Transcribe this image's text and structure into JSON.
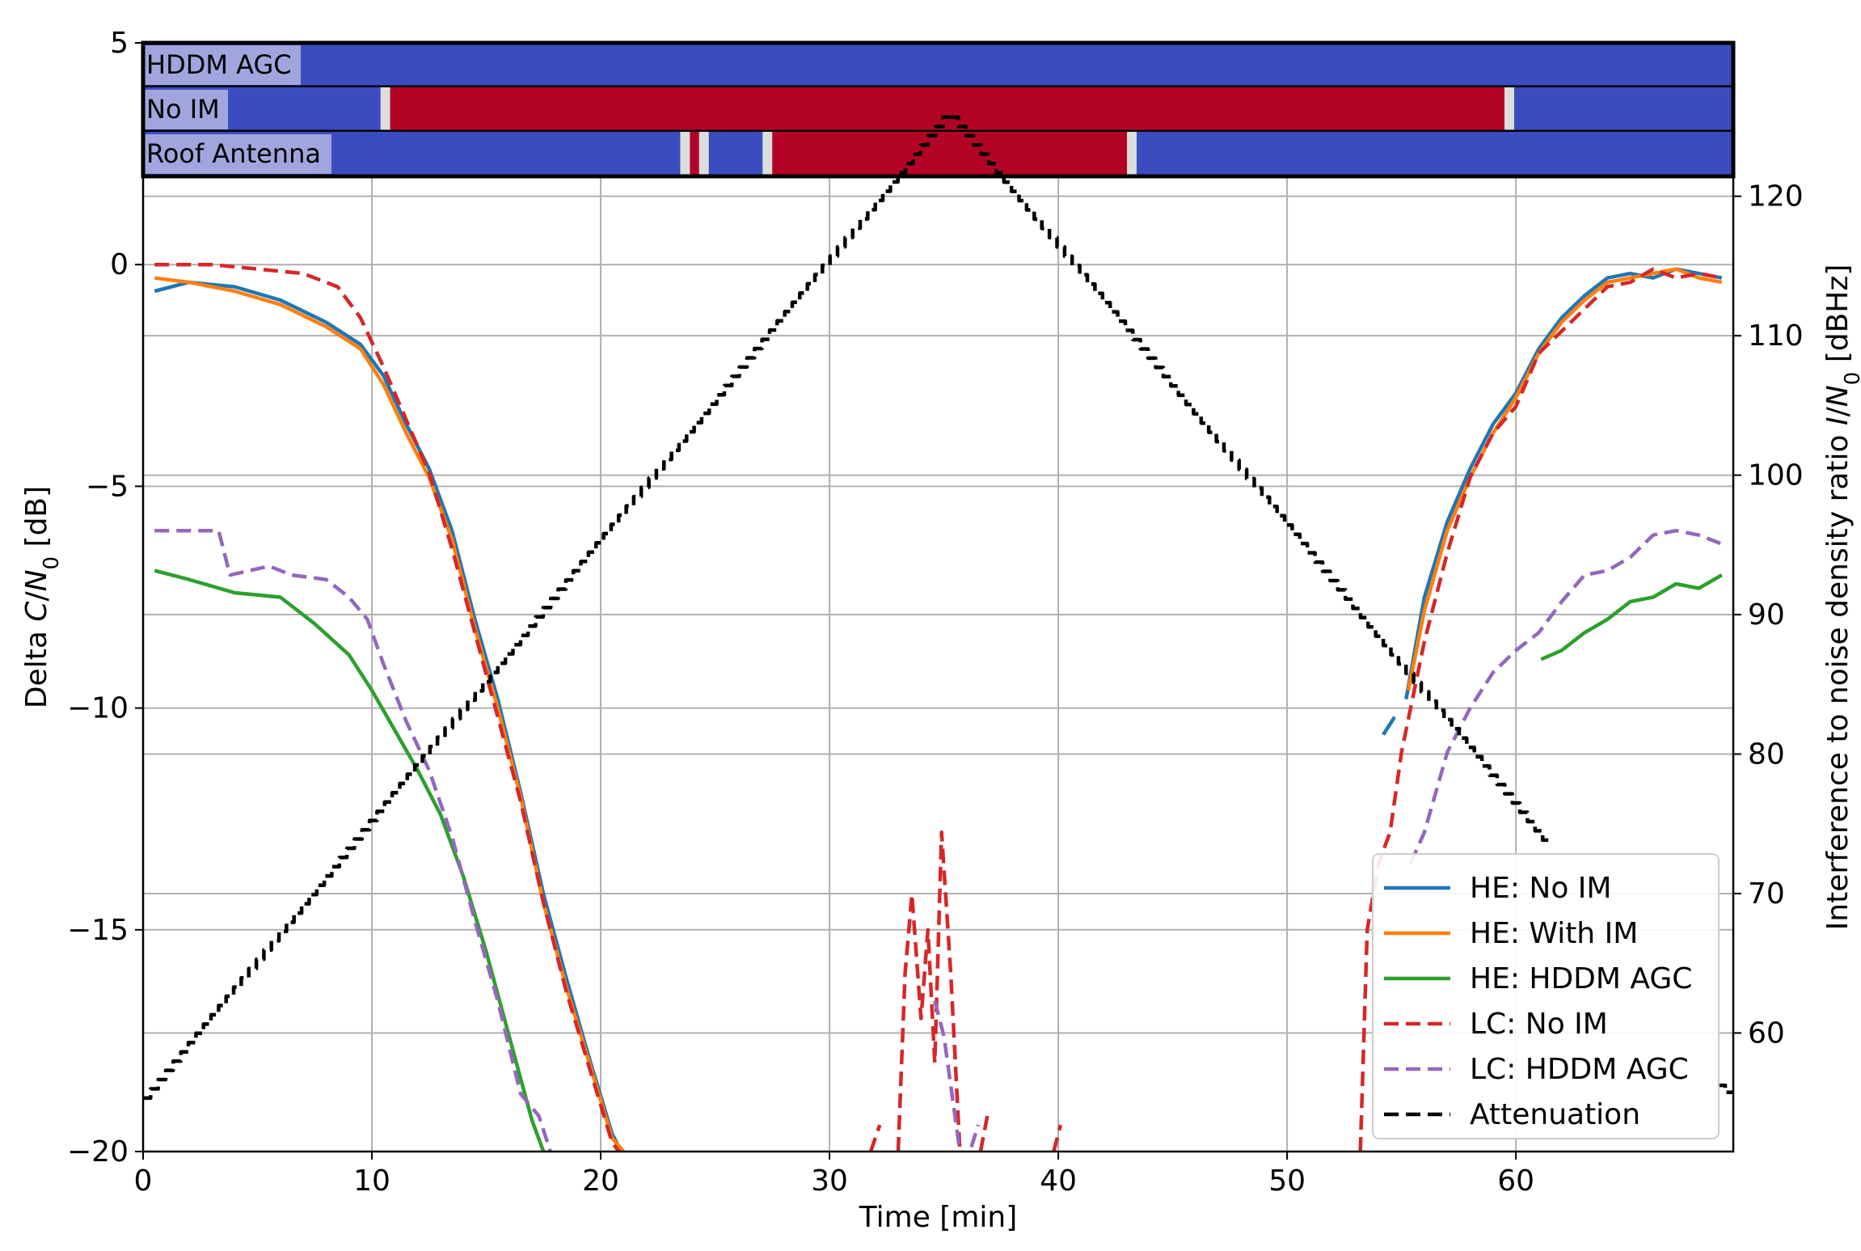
{
  "chart_data": {
    "type": "line",
    "xlabel": "Time [min]",
    "ylabel_left_parts": [
      "Delta ",
      "C",
      "/",
      "N",
      "0",
      " [dB]"
    ],
    "ylabel_right_parts": [
      "Interference to noise density ratio ",
      "I",
      "/",
      "N",
      "0",
      " [dBHz]"
    ],
    "xlim": [
      0,
      69.5
    ],
    "ylim_left": [
      -20,
      5
    ],
    "ylim_right": [
      51.5,
      131
    ],
    "x_ticks": [
      "0",
      "10",
      "20",
      "30",
      "40",
      "50",
      "60"
    ],
    "y_left_ticks": [
      "5",
      "0",
      "−5",
      "−10",
      "−15",
      "−20"
    ],
    "y_right_ticks": [
      "60",
      "70",
      "80",
      "90",
      "100",
      "110",
      "120"
    ],
    "grid": true,
    "legend_position": "lower-right",
    "status_strips": [
      {
        "label": "HDDM AGC",
        "red_segments": []
      },
      {
        "label": "No IM",
        "red_segments": [
          [
            10.8,
            59.5
          ]
        ]
      },
      {
        "label": "Roof Antenna",
        "red_segments": [
          [
            23.9,
            24.3
          ],
          [
            27.5,
            43.0
          ]
        ]
      }
    ],
    "series": [
      {
        "name": "HE: No IM",
        "color": "#1f77b4",
        "style": "solid",
        "axis": "left",
        "segments": [
          [
            [
              0.5,
              -0.6
            ],
            [
              2,
              -0.4
            ],
            [
              4,
              -0.5
            ],
            [
              6,
              -0.8
            ],
            [
              8,
              -1.3
            ],
            [
              9.5,
              -1.8
            ],
            [
              10.5,
              -2.5
            ],
            [
              11.5,
              -3.6
            ],
            [
              12.5,
              -4.6
            ],
            [
              13.5,
              -6.0
            ],
            [
              14.5,
              -8.0
            ],
            [
              15.5,
              -9.8
            ],
            [
              16.5,
              -11.9
            ],
            [
              17.5,
              -14.2
            ],
            [
              18.5,
              -16.1
            ],
            [
              19.5,
              -17.9
            ],
            [
              20.5,
              -19.6
            ],
            [
              20.9,
              -20
            ]
          ],
          [
            [
              54.2,
              -10.6
            ],
            [
              54.7,
              -10.2
            ]
          ],
          [
            [
              55.2,
              -9.8
            ],
            [
              56,
              -7.5
            ],
            [
              57,
              -5.8
            ],
            [
              58,
              -4.6
            ],
            [
              59,
              -3.6
            ],
            [
              60,
              -2.9
            ],
            [
              61,
              -1.9
            ],
            [
              62,
              -1.2
            ],
            [
              63,
              -0.7
            ],
            [
              64,
              -0.3
            ],
            [
              65,
              -0.2
            ],
            [
              66,
              -0.3
            ],
            [
              67,
              -0.1
            ],
            [
              68,
              -0.2
            ],
            [
              69,
              -0.3
            ]
          ]
        ]
      },
      {
        "name": "HE: With IM",
        "color": "#ff7f0e",
        "style": "solid",
        "axis": "left",
        "segments": [
          [
            [
              0.5,
              -0.3
            ],
            [
              2,
              -0.4
            ],
            [
              4,
              -0.6
            ],
            [
              6,
              -0.9
            ],
            [
              8,
              -1.4
            ],
            [
              9.5,
              -1.9
            ],
            [
              10.5,
              -2.7
            ],
            [
              11.5,
              -3.8
            ],
            [
              12.5,
              -4.8
            ],
            [
              13.5,
              -6.2
            ],
            [
              14.5,
              -8.2
            ],
            [
              15.5,
              -10.0
            ],
            [
              16.5,
              -12.0
            ],
            [
              17.5,
              -14.4
            ],
            [
              18.5,
              -16.3
            ],
            [
              19.5,
              -18.0
            ],
            [
              20.5,
              -19.7
            ],
            [
              21,
              -20
            ]
          ],
          [
            [
              55.3,
              -9.6
            ],
            [
              56,
              -7.8
            ],
            [
              57,
              -6.0
            ],
            [
              58,
              -4.8
            ],
            [
              59,
              -3.8
            ],
            [
              60,
              -3.0
            ],
            [
              61,
              -2.0
            ],
            [
              62,
              -1.3
            ],
            [
              63,
              -0.8
            ],
            [
              64,
              -0.4
            ],
            [
              65,
              -0.3
            ],
            [
              66,
              -0.2
            ],
            [
              67,
              -0.1
            ],
            [
              68,
              -0.3
            ],
            [
              69,
              -0.4
            ]
          ]
        ]
      },
      {
        "name": "HE: HDDM AGC",
        "color": "#2ca02c",
        "style": "solid",
        "axis": "left",
        "segments": [
          [
            [
              0.5,
              -6.9
            ],
            [
              2,
              -7.1
            ],
            [
              4,
              -7.4
            ],
            [
              6,
              -7.5
            ],
            [
              7.5,
              -8.1
            ],
            [
              9,
              -8.8
            ],
            [
              10,
              -9.6
            ],
            [
              11,
              -10.5
            ],
            [
              12,
              -11.4
            ],
            [
              13,
              -12.4
            ],
            [
              14,
              -13.8
            ],
            [
              15,
              -15.5
            ],
            [
              16,
              -17.4
            ],
            [
              17,
              -19.3
            ],
            [
              17.5,
              -20
            ]
          ],
          [
            [
              61.1,
              -8.9
            ],
            [
              62,
              -8.7
            ],
            [
              63,
              -8.3
            ],
            [
              64,
              -8.0
            ],
            [
              65,
              -7.6
            ],
            [
              66,
              -7.5
            ],
            [
              67,
              -7.2
            ],
            [
              68,
              -7.3
            ],
            [
              69,
              -7.0
            ]
          ]
        ]
      },
      {
        "name": "LC: No IM",
        "color": "#d62728",
        "style": "dashed",
        "axis": "left",
        "segments": [
          [
            [
              0.5,
              0
            ],
            [
              3,
              0
            ],
            [
              5,
              -0.1
            ],
            [
              7,
              -0.2
            ],
            [
              8.5,
              -0.5
            ],
            [
              9.5,
              -1.2
            ],
            [
              10.5,
              -2.3
            ],
            [
              11.5,
              -3.5
            ],
            [
              12.5,
              -4.7
            ],
            [
              13.5,
              -6.4
            ],
            [
              14.5,
              -8.3
            ],
            [
              15.5,
              -10.2
            ],
            [
              16.5,
              -12.1
            ],
            [
              17.5,
              -14.4
            ],
            [
              18.5,
              -16.4
            ],
            [
              19.5,
              -18.1
            ],
            [
              20.5,
              -19.8
            ],
            [
              20.8,
              -20
            ]
          ],
          [
            [
              31.8,
              -20
            ],
            [
              32.2,
              -19.4
            ]
          ],
          [
            [
              33,
              -20
            ],
            [
              33.3,
              -16
            ],
            [
              33.6,
              -14.2
            ],
            [
              34,
              -17
            ],
            [
              34.3,
              -15
            ],
            [
              34.6,
              -18
            ],
            [
              34.9,
              -12.8
            ],
            [
              35.3,
              -16
            ],
            [
              35.7,
              -20
            ]
          ],
          [
            [
              36.6,
              -20
            ],
            [
              36.9,
              -19.2
            ]
          ],
          [
            [
              39.8,
              -20
            ],
            [
              40.1,
              -19.4
            ]
          ],
          [
            [
              53.2,
              -20
            ],
            [
              53.5,
              -15
            ],
            [
              54,
              -13.5
            ],
            [
              54.5,
              -12.8
            ],
            [
              55,
              -11
            ],
            [
              56,
              -8.5
            ],
            [
              57,
              -6.5
            ],
            [
              58,
              -4.8
            ],
            [
              59,
              -3.8
            ],
            [
              60,
              -3.2
            ],
            [
              61,
              -2.0
            ],
            [
              62,
              -1.5
            ],
            [
              63,
              -1.0
            ],
            [
              64,
              -0.5
            ],
            [
              65,
              -0.4
            ],
            [
              66,
              -0.1
            ],
            [
              67,
              -0.3
            ],
            [
              68,
              -0.2
            ],
            [
              69,
              -0.3
            ]
          ]
        ]
      },
      {
        "name": "LC: HDDM AGC",
        "color": "#9467bd",
        "style": "dashed",
        "axis": "left",
        "segments": [
          [
            [
              0.5,
              -6.0
            ],
            [
              3.3,
              -6.0
            ],
            [
              3.8,
              -7.0
            ],
            [
              5.5,
              -6.8
            ],
            [
              6.5,
              -7.0
            ],
            [
              8,
              -7.1
            ],
            [
              9,
              -7.5
            ],
            [
              9.8,
              -8.0
            ],
            [
              10.5,
              -9.0
            ],
            [
              11.5,
              -10.3
            ],
            [
              12.5,
              -11.4
            ],
            [
              13.5,
              -12.9
            ],
            [
              14.5,
              -14.8
            ],
            [
              15.5,
              -16.6
            ],
            [
              16.5,
              -18.7
            ],
            [
              17.3,
              -19.2
            ],
            [
              17.8,
              -20
            ]
          ],
          [
            [
              34.6,
              -16.6
            ],
            [
              35,
              -17.4
            ],
            [
              35.7,
              -20
            ]
          ],
          [
            [
              36.2,
              -19.9
            ],
            [
              36.5,
              -19.4
            ]
          ],
          [
            [
              55.4,
              -13.5
            ],
            [
              56,
              -12.8
            ],
            [
              57,
              -11.0
            ],
            [
              58,
              -10.0
            ],
            [
              59,
              -9.2
            ],
            [
              60,
              -8.7
            ],
            [
              61,
              -8.3
            ],
            [
              62,
              -7.6
            ],
            [
              63,
              -7.0
            ],
            [
              64,
              -6.9
            ],
            [
              65,
              -6.6
            ],
            [
              66,
              -6.1
            ],
            [
              67,
              -6.0
            ],
            [
              68,
              -6.1
            ],
            [
              69,
              -6.3
            ]
          ]
        ]
      },
      {
        "name": "Attenuation",
        "color": "#000000",
        "style": "dashed",
        "axis": "right",
        "step": true,
        "segments": [
          [
            [
              0,
              55
            ],
            [
              35.3,
              126
            ]
          ],
          [
            [
              35.3,
              126
            ],
            [
              61.5,
              73.5
            ]
          ],
          [
            [
              68.8,
              56.5
            ],
            [
              69.5,
              55.5
            ]
          ]
        ]
      }
    ]
  }
}
